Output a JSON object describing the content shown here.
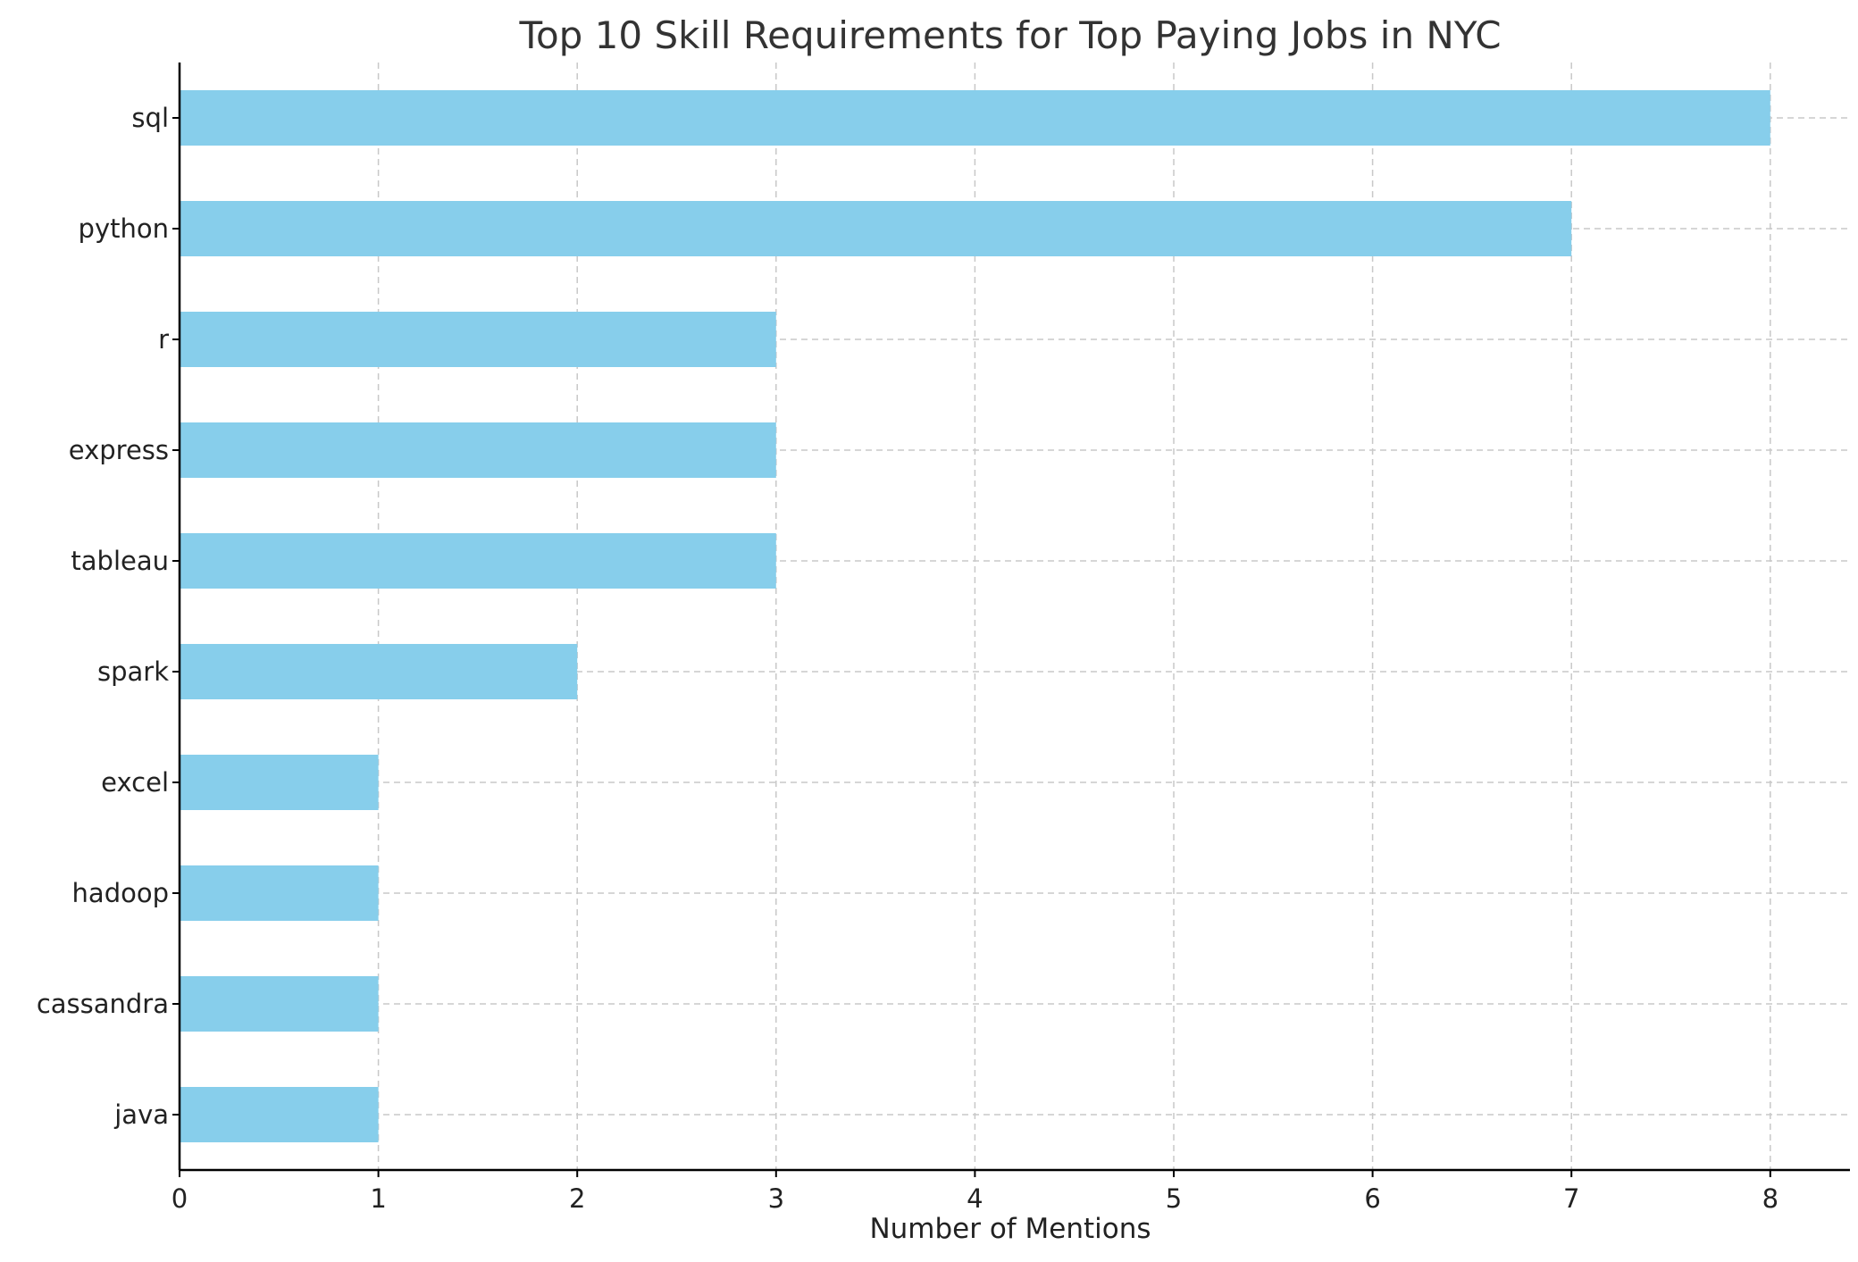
{
  "chart_data": {
    "type": "bar",
    "orientation": "horizontal",
    "title": "Top 10 Skill Requirements for Top Paying Jobs in NYC",
    "xlabel": "Number of Mentions",
    "ylabel": "",
    "categories": [
      "sql",
      "python",
      "r",
      "express",
      "tableau",
      "spark",
      "excel",
      "hadoop",
      "cassandra",
      "java"
    ],
    "values": [
      8,
      7,
      3,
      3,
      3,
      2,
      1,
      1,
      1,
      1
    ],
    "xlim": [
      0,
      8.4
    ],
    "xticks": [
      "0",
      "1",
      "2",
      "3",
      "4",
      "5",
      "6",
      "7",
      "8"
    ],
    "grid": true,
    "bar_color": "#87CEEB",
    "grid_color": "#c8c8c8",
    "axis_color": "#000000"
  }
}
